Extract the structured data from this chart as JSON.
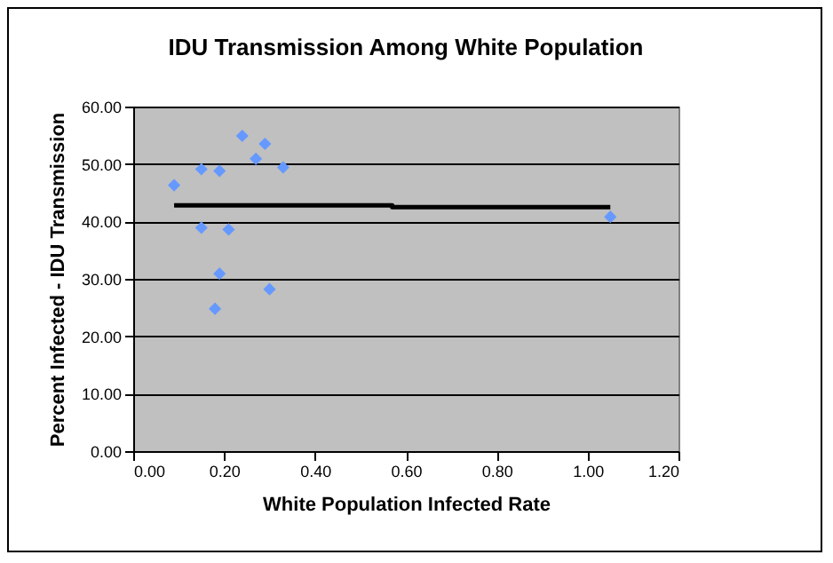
{
  "chart_data": {
    "type": "scatter",
    "title": "IDU Transmission Among White Population",
    "xlabel": "White Population Infected Rate",
    "ylabel": "Percent Infected - IDU Transmission",
    "xlim": [
      0,
      1.2
    ],
    "ylim": [
      0,
      60
    ],
    "xticks": [
      {
        "value": 0,
        "label": "0.00"
      },
      {
        "value": 0.2,
        "label": "0.20"
      },
      {
        "value": 0.4,
        "label": "0.40"
      },
      {
        "value": 0.6,
        "label": "0.60"
      },
      {
        "value": 0.8,
        "label": "0.80"
      },
      {
        "value": 1,
        "label": "1.00"
      },
      {
        "value": 1.2,
        "label": "1.20"
      }
    ],
    "yticks": [
      {
        "value": 0,
        "label": "0.00"
      },
      {
        "value": 10,
        "label": "10.00"
      },
      {
        "value": 20,
        "label": "20.00"
      },
      {
        "value": 30,
        "label": "30.00"
      },
      {
        "value": 40,
        "label": "40.00"
      },
      {
        "value": 50,
        "label": "50.00"
      },
      {
        "value": 60,
        "label": "60.00"
      }
    ],
    "grid": "y",
    "marker": "diamond",
    "series": [
      {
        "color": "#6699ff",
        "x": [
          0.09,
          0.15,
          0.19,
          0.24,
          0.27,
          0.29,
          0.33,
          0.15,
          0.21,
          0.19,
          0.3,
          0.18,
          1.05
        ],
        "values": [
          46.3,
          49.1,
          48.8,
          54.9,
          50.9,
          53.5,
          49.4,
          38.9,
          38.6,
          30.9,
          28.2,
          24.8,
          40.8
        ]
      },
      {
        "type": "line",
        "color": "#000000",
        "line_style": "solid",
        "marker": "none",
        "x": [
          0.09,
          0.57,
          0.57,
          1.05
        ],
        "values": [
          42.8,
          42.8,
          42.5,
          42.5
        ]
      }
    ]
  }
}
